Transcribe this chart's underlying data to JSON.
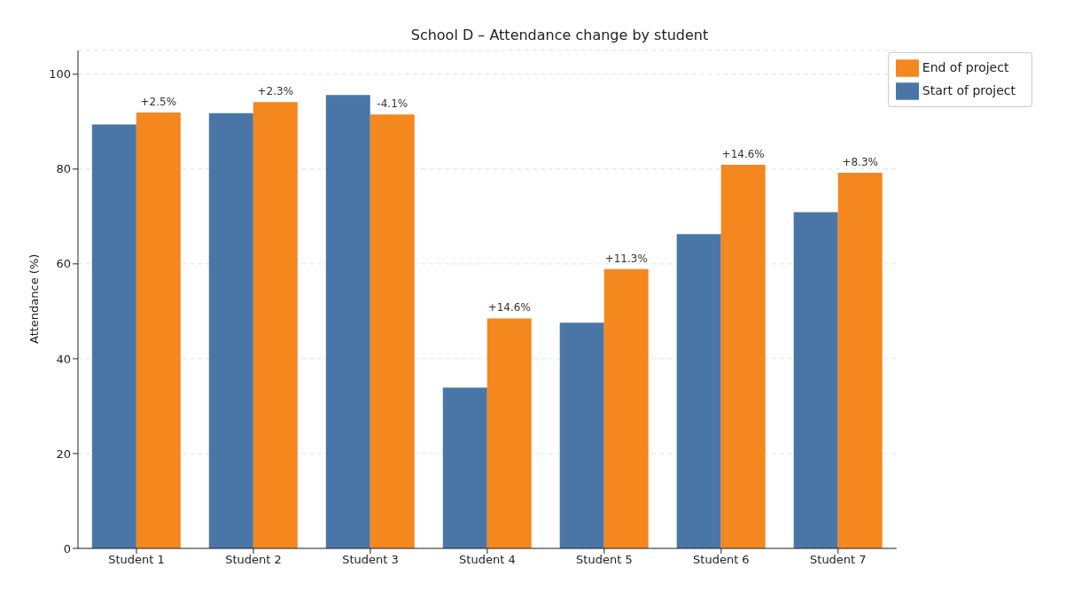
{
  "chart_data": {
    "type": "bar",
    "title": "School D – Attendance change by student",
    "ylabel": "Attendance (%)",
    "categories": [
      "Student 1",
      "Student 2",
      "Student 3",
      "Student 4",
      "Student 5",
      "Student 6",
      "Student 7"
    ],
    "series": [
      {
        "name": "Start of project",
        "color": "#4a76a7",
        "values": [
          89.4,
          91.8,
          95.6,
          33.9,
          47.6,
          66.3,
          70.9
        ]
      },
      {
        "name": "End of project",
        "color": "#f5871f",
        "values": [
          91.9,
          94.1,
          91.5,
          48.5,
          58.9,
          80.9,
          79.2
        ]
      }
    ],
    "annotations": [
      {
        "text": "+2.5%",
        "x": "Student 1",
        "y": 91.9
      },
      {
        "text": "+2.3%",
        "x": "Student 2",
        "y": 94.1
      },
      {
        "text": "-4.1%",
        "x": "Student 3",
        "y": 91.5
      },
      {
        "text": "+14.6%",
        "x": "Student 4",
        "y": 48.5
      },
      {
        "text": "+11.3%",
        "x": "Student 5",
        "y": 58.9
      },
      {
        "text": "+14.6%",
        "x": "Student 6",
        "y": 80.9
      },
      {
        "text": "+8.3%",
        "x": "Student 7",
        "y": 79.2
      }
    ],
    "ylim": [
      0,
      105
    ],
    "yticks": [
      0,
      20,
      40,
      60,
      80,
      100
    ],
    "grid": "y",
    "legend": "top right"
  }
}
